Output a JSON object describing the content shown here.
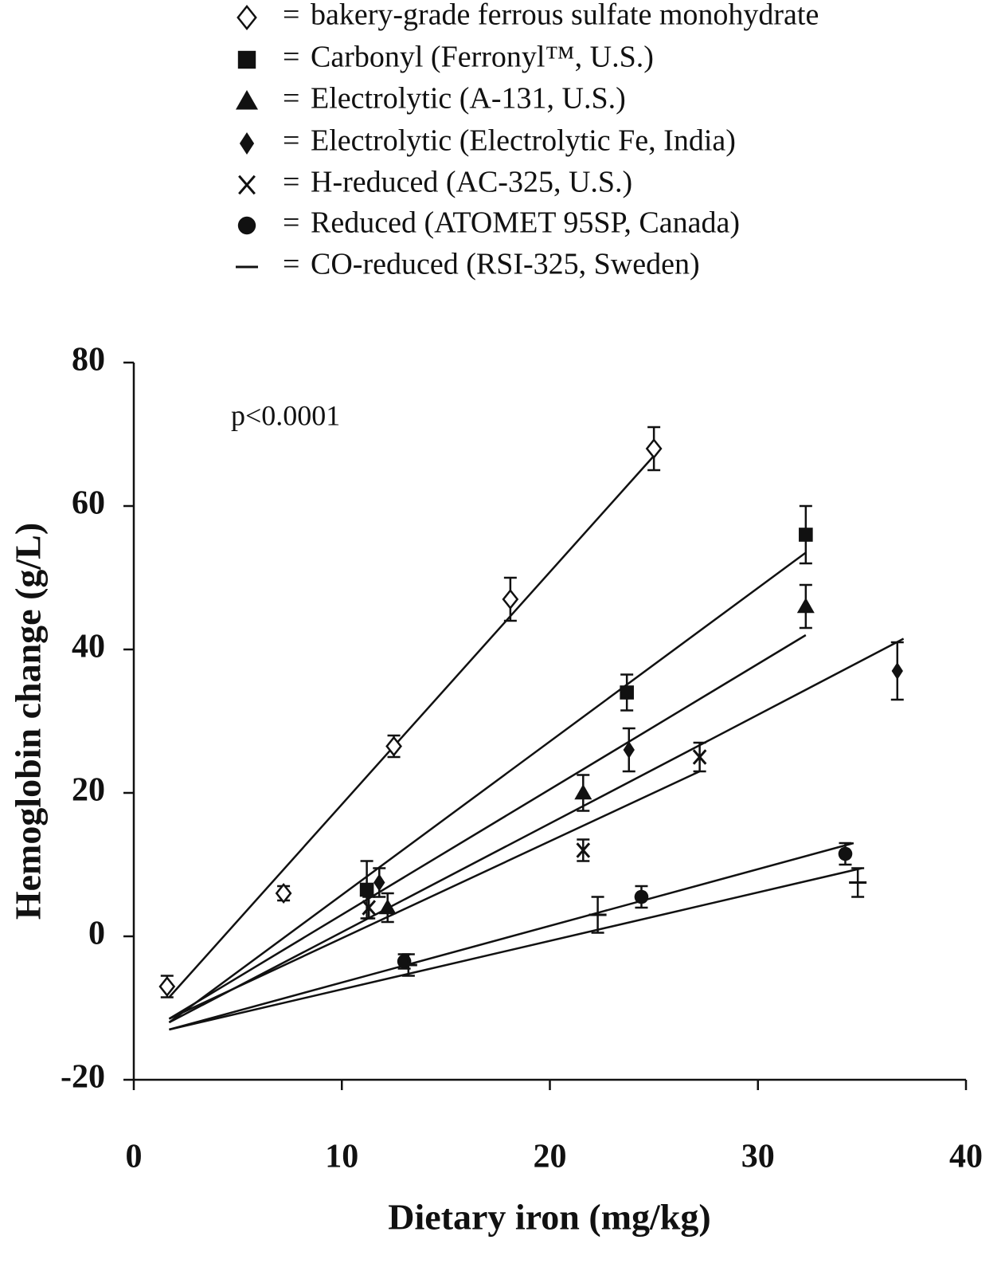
{
  "chart_data": {
    "type": "scatter",
    "x_label": "Dietary iron (mg/kg)",
    "y_label": "Hemoglobin change (g/L)",
    "annotation": "p<0.0001",
    "legend_separator": "=",
    "legend": "top-left",
    "xlim": [
      0,
      40
    ],
    "xticks": [
      0,
      10,
      20,
      30,
      40
    ],
    "ylim": [
      -20,
      80
    ],
    "yticks": [
      -20,
      0,
      20,
      40,
      60,
      80
    ],
    "series": [
      {
        "name": "bakery-grade ferrous sulfate monohydrate",
        "marker": "open-diamond",
        "color": "#111",
        "x": [
          1.6,
          7.2,
          12.5,
          18.1,
          25
        ],
        "values": [
          -7,
          6,
          26.5,
          47,
          68
        ],
        "errors": [
          1.5,
          1,
          1.5,
          3,
          3
        ],
        "fit": {
          "x": [
            1.7,
            25
          ],
          "y": [
            -8.5,
            67
          ]
        }
      },
      {
        "name": "Carbonyl (Ferronyl™, U.S.)",
        "marker": "square",
        "color": "#111",
        "x": [
          11.2,
          23.7,
          32.3
        ],
        "values": [
          6.5,
          34,
          56
        ],
        "errors": [
          4,
          2.5,
          4
        ],
        "fit": {
          "x": [
            1.7,
            32.3
          ],
          "y": [
            -12,
            53.5
          ]
        }
      },
      {
        "name": "Electrolytic (A-131, U.S.)",
        "marker": "triangle",
        "color": "#111",
        "x": [
          12.2,
          21.6,
          32.3
        ],
        "values": [
          4,
          20,
          46
        ],
        "errors": [
          2,
          2.5,
          3
        ],
        "fit": {
          "x": [
            1.7,
            32.3
          ],
          "y": [
            -11.5,
            42
          ]
        }
      },
      {
        "name": "Electrolytic (Electrolytic Fe, India)",
        "marker": "diamond",
        "color": "#111",
        "x": [
          11.8,
          23.8,
          36.7
        ],
        "values": [
          7.5,
          26,
          37
        ],
        "errors": [
          2,
          3,
          4
        ],
        "fit": {
          "x": [
            1.7,
            37
          ],
          "y": [
            -12,
            41.5
          ]
        }
      },
      {
        "name": "H-reduced (AC-325, U.S.)",
        "marker": "x",
        "color": "#111",
        "x": [
          11.3,
          21.6,
          27.2
        ],
        "values": [
          4,
          12,
          25
        ],
        "errors": [
          1.5,
          1.5,
          2
        ],
        "fit": {
          "x": [
            1.7,
            27.2
          ],
          "y": [
            -11.5,
            23
          ]
        }
      },
      {
        "name": "Reduced (ATOMET 95SP, Canada)",
        "marker": "circle",
        "color": "#111",
        "x": [
          13,
          24.4,
          34.2
        ],
        "values": [
          -3.5,
          5.5,
          11.5
        ],
        "errors": [
          1,
          1.5,
          1.5
        ],
        "fit": {
          "x": [
            1.7,
            34.6
          ],
          "y": [
            -13,
            13
          ]
        }
      },
      {
        "name": "CO-reduced (RSI-325, Sweden)",
        "marker": "dash",
        "color": "#111",
        "x": [
          13.2,
          22.3,
          34.8
        ],
        "values": [
          -4,
          3,
          7.5
        ],
        "errors": [
          1.5,
          2.5,
          2
        ],
        "fit": {
          "x": [
            1.7,
            35
          ],
          "y": [
            -13,
            9.5
          ]
        }
      }
    ]
  }
}
